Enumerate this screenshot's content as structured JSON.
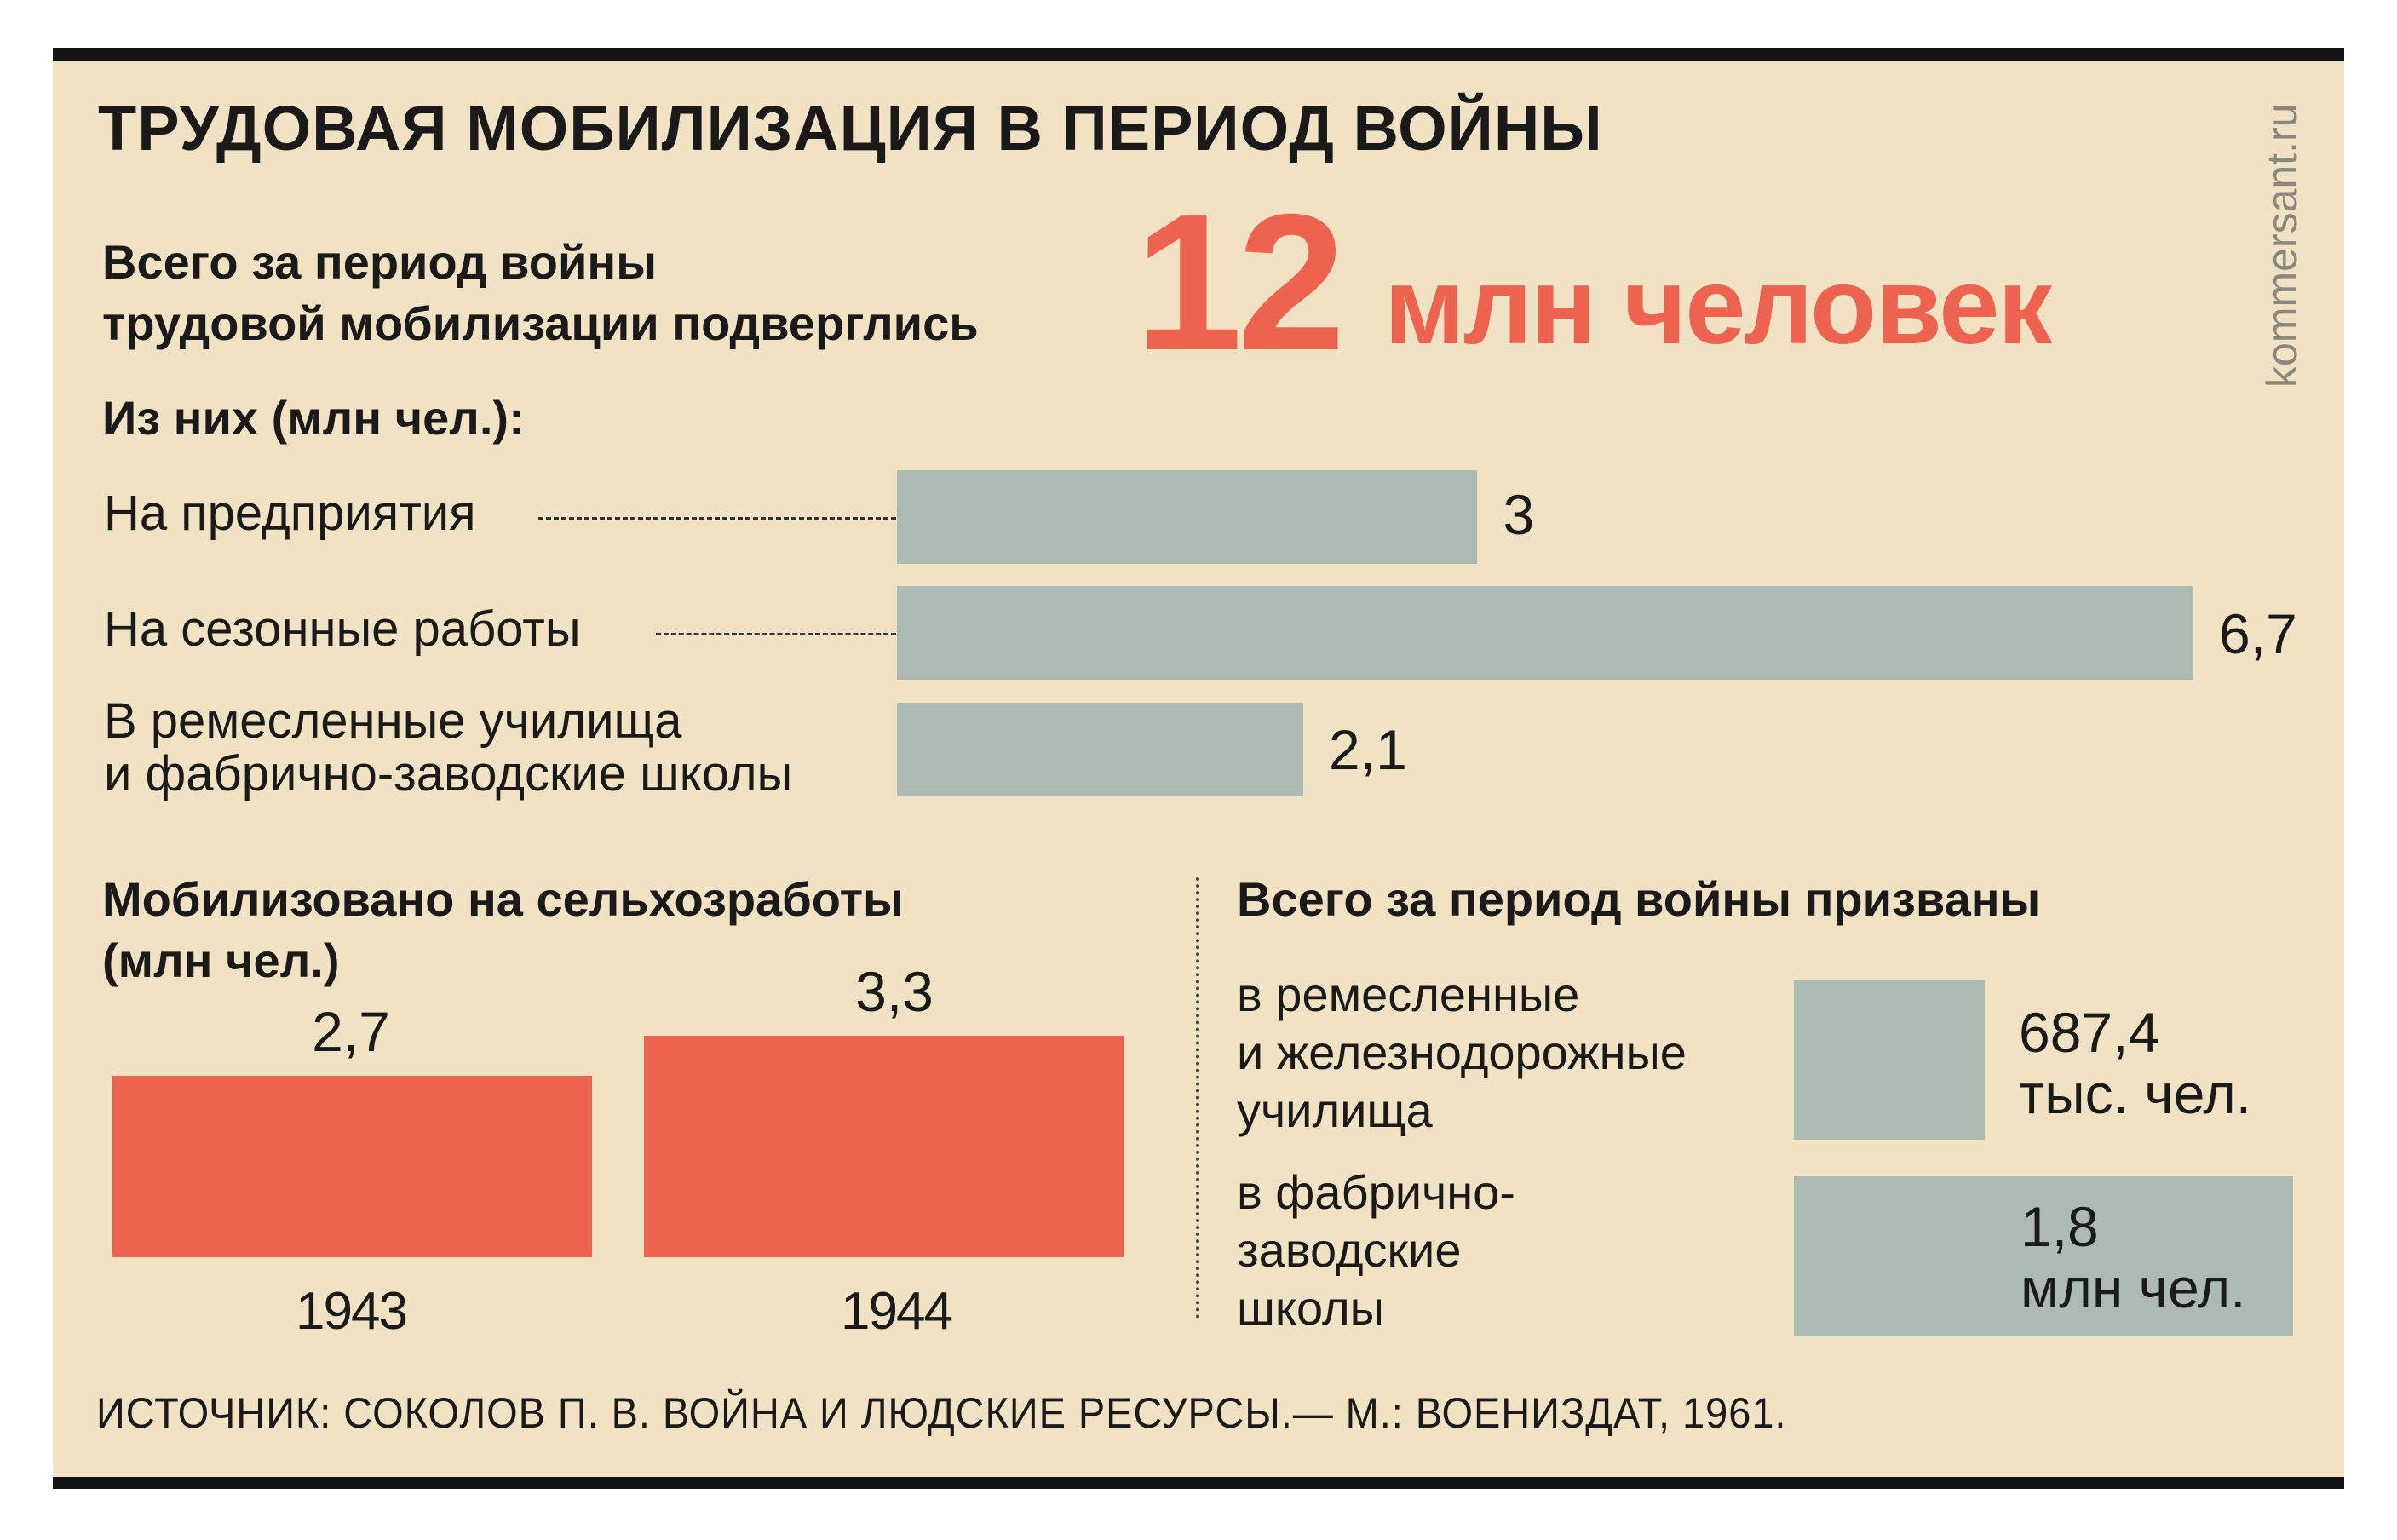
{
  "title": "ТРУДОВАЯ МОБИЛИЗАЦИЯ В ПЕРИОД ВОЙНЫ",
  "site": "kommersant.ru",
  "lead": {
    "line1": "Всего за период войны",
    "line2": "трудовой мобилизации подверглись",
    "number": "12",
    "unit": "млн человек"
  },
  "colors": {
    "background": "#f0e2c2",
    "accent": "#ee6250",
    "bar_gray": "#adbab3",
    "rule": "#141414"
  },
  "chart_data": [
    {
      "type": "bar",
      "orientation": "horizontal",
      "title": "Из них (млн чел.):",
      "categories": [
        [
          "На предприятия"
        ],
        [
          "На сезонные работы"
        ],
        [
          "В ремесленные училища",
          "и фабрично-заводские школы"
        ]
      ],
      "values": [
        3,
        6.7,
        2.1
      ],
      "value_labels": [
        "3",
        "6,7",
        "2,1"
      ],
      "xlim": [
        0,
        6.7
      ]
    },
    {
      "type": "bar",
      "orientation": "vertical",
      "title": [
        "Мобилизовано на сельхозработы",
        "(млн чел.)"
      ],
      "categories": [
        "1943",
        "1944"
      ],
      "values": [
        2.7,
        3.3
      ],
      "value_labels": [
        "2,7",
        "3,3"
      ],
      "ylim": [
        0,
        3.3
      ]
    }
  ],
  "drafted": {
    "title": "Всего за период войны призваны",
    "items": [
      {
        "label_lines": [
          "в ремесленные",
          "и железнодорожные",
          "училища"
        ],
        "value": "687,4",
        "unit": "тыс. чел.",
        "people": 687400
      },
      {
        "label_lines": [
          "в фабрично-",
          "заводские",
          "школы"
        ],
        "value": "1,8",
        "unit": "млн чел.",
        "people": 1800000
      }
    ]
  },
  "source": "ИСТОЧНИК: СОКОЛОВ П. В. ВОЙНА И ЛЮДСКИЕ РЕСУРСЫ.— М.: ВОЕНИЗДАТ, 1961."
}
